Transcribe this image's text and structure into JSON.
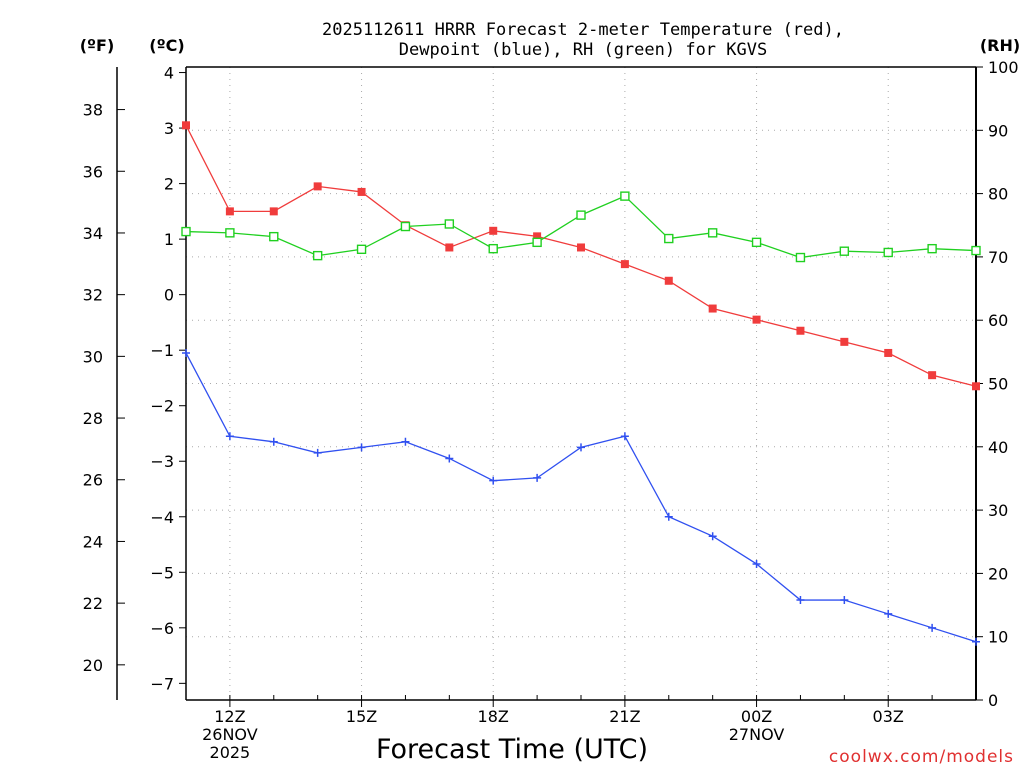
{
  "chart_data": {
    "type": "line",
    "title_lines": [
      "2025112611 HRRR Forecast 2-meter Temperature (red),",
      "Dewpoint (blue), RH (green) for KGVS"
    ],
    "xlabel": "Forecast Time (UTC)",
    "units": {
      "fahrenheit": "(ºF)",
      "celsius": "(ºC)",
      "rh": "(RH)"
    },
    "x_hours": [
      11,
      12,
      13,
      14,
      15,
      16,
      17,
      18,
      19,
      20,
      21,
      22,
      23,
      24,
      25,
      26,
      27,
      28,
      29
    ],
    "xlim": [
      11,
      29
    ],
    "x_ticks": [
      {
        "hour": 12,
        "lines": [
          "12Z",
          "26NOV",
          "2025"
        ]
      },
      {
        "hour": 15,
        "lines": [
          "15Z"
        ]
      },
      {
        "hour": 18,
        "lines": [
          "18Z"
        ]
      },
      {
        "hour": 21,
        "lines": [
          "21Z"
        ]
      },
      {
        "hour": 24,
        "lines": [
          "00Z",
          "27NOV"
        ]
      },
      {
        "hour": 27,
        "lines": [
          "03Z"
        ]
      }
    ],
    "y_celsius": {
      "range": [
        -7.3,
        4.1
      ],
      "ticks": [
        "4",
        "3",
        "2",
        "1",
        "0",
        "−1",
        "−2",
        "−3",
        "−4",
        "−5",
        "−6",
        "−7"
      ],
      "tick_values": [
        4,
        3,
        2,
        1,
        0,
        -1,
        -2,
        -3,
        -4,
        -5,
        -6,
        -7
      ]
    },
    "y_fahrenheit": {
      "ticks": [
        "38",
        "36",
        "34",
        "32",
        "30",
        "28",
        "26",
        "24",
        "22",
        "20"
      ],
      "tick_values": [
        38,
        36,
        34,
        32,
        30,
        28,
        26,
        24,
        22,
        20
      ]
    },
    "y_rh": {
      "range": [
        0,
        100
      ],
      "ticks": [
        "100",
        "90",
        "80",
        "70",
        "60",
        "50",
        "40",
        "30",
        "20",
        "10",
        "0"
      ],
      "tick_values": [
        100,
        90,
        80,
        70,
        60,
        50,
        40,
        30,
        20,
        10,
        0
      ]
    },
    "series": [
      {
        "name": "Temperature",
        "units": "C",
        "color": "#f03c3c",
        "marker": "filled-square",
        "values": [
          3.05,
          1.5,
          1.5,
          1.95,
          1.85,
          1.25,
          0.85,
          1.15,
          1.05,
          0.85,
          0.55,
          0.25,
          -0.25,
          -0.45,
          -0.65,
          -0.85,
          -1.05,
          -1.45,
          -1.65
        ]
      },
      {
        "name": "Dewpoint",
        "units": "C",
        "color": "#3050f0",
        "marker": "plus",
        "values": [
          -1.05,
          -2.55,
          -2.65,
          -2.85,
          -2.75,
          -2.65,
          -2.95,
          -3.35,
          -3.3,
          -2.75,
          -2.55,
          -4.0,
          -4.35,
          -4.85,
          -5.5,
          -5.5,
          -5.75,
          -6.0,
          -6.25
        ]
      },
      {
        "name": "RH",
        "units": "%",
        "color": "#20d020",
        "marker": "open-square",
        "values": [
          74.0,
          73.8,
          73.2,
          70.2,
          71.2,
          74.8,
          75.2,
          71.3,
          72.3,
          76.6,
          79.6,
          72.9,
          73.8,
          72.3,
          69.9,
          70.9,
          70.7,
          71.3,
          71.0
        ]
      }
    ]
  },
  "footer": {
    "credit": "coolwx.com/models"
  }
}
